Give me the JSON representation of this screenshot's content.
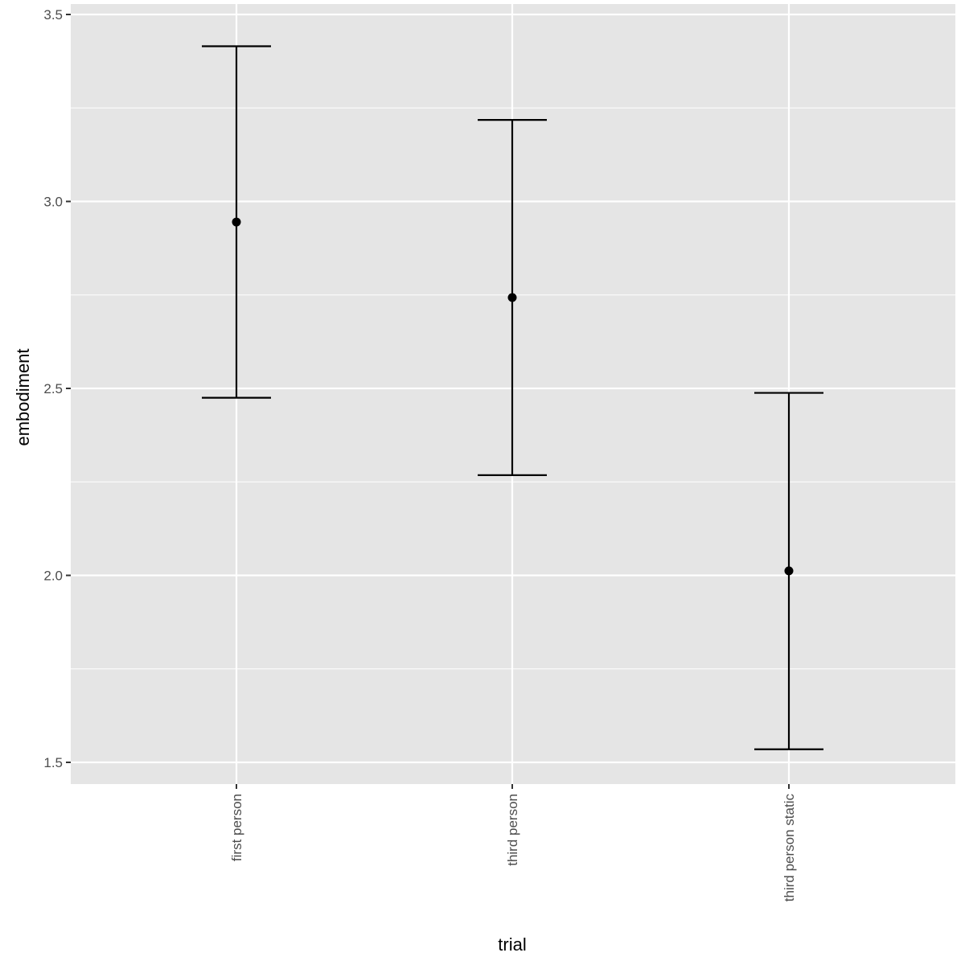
{
  "chart_data": {
    "type": "scatter",
    "subtype": "pointrange-errorbar",
    "title": "",
    "xlabel": "trial",
    "ylabel": "embodiment",
    "categories": [
      "first person",
      "third person",
      "third person static"
    ],
    "series": [
      {
        "values": [
          2.945,
          2.743,
          2.012
        ],
        "lower": [
          2.475,
          2.268,
          1.535
        ],
        "upper": [
          3.415,
          3.218,
          2.488
        ]
      }
    ],
    "ylim": [
      1.44,
      3.51
    ],
    "yticks": [
      1.5,
      2.0,
      2.5,
      3.0,
      3.5
    ],
    "ytick_labels": [
      "1.5",
      "2.0",
      "2.5",
      "3.0",
      "3.5"
    ],
    "grid": true,
    "legend": "none",
    "colors": {
      "panel_background": "#e5e5e5",
      "grid": "#ffffff",
      "marks": "#000000",
      "tick_text": "#4d4d4d",
      "tick_mark": "#333333"
    }
  }
}
